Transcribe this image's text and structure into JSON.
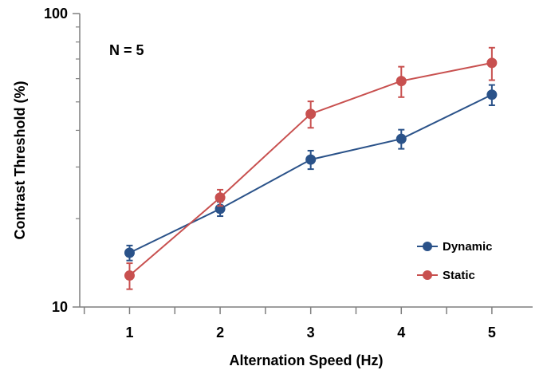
{
  "chart_data": {
    "type": "line",
    "title": "",
    "xlabel": "Alternation Speed (Hz)",
    "ylabel": "Contrast Threshold (%)",
    "x": [
      1,
      2,
      3,
      4,
      5
    ],
    "x_tick_labels": [
      "1",
      "2",
      "3",
      "4",
      "5"
    ],
    "xlim": [
      0.45,
      5.45
    ],
    "yscale": "log",
    "ylim": [
      10,
      100
    ],
    "y_tick_labels": [
      "10",
      "100"
    ],
    "grid": false,
    "legend_position": "bottom-right",
    "annotation": "N = 5",
    "series": [
      {
        "name": "Dynamic",
        "color": "#2A5289",
        "values": [
          15.3,
          21.6,
          31.8,
          37.4,
          52.9
        ],
        "error": [
          0.9,
          1.2,
          2.3,
          2.8,
          4.2
        ]
      },
      {
        "name": "Static",
        "color": "#C8504F",
        "values": [
          12.8,
          23.6,
          45.5,
          58.9,
          67.9
        ],
        "error": [
          1.3,
          1.5,
          4.7,
          7.0,
          8.6
        ]
      }
    ]
  }
}
